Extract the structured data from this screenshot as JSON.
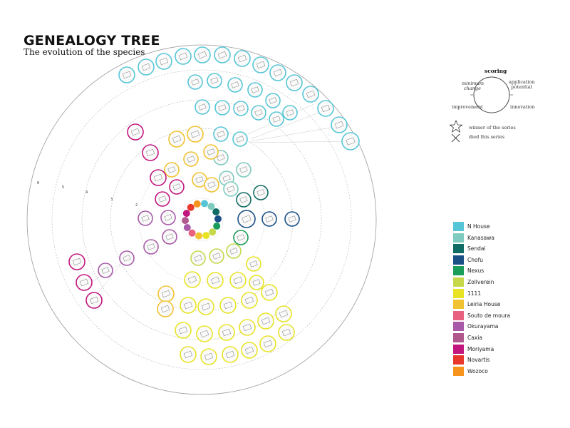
{
  "header": {
    "title": "GENEALOGY TREE",
    "subtitle": "The evolution of the species"
  },
  "scoring": {
    "title": "scoring",
    "minimum_change": "minimum change",
    "application_potential": "application potential",
    "improvement": "improvement",
    "innovation": "innovation"
  },
  "markers": {
    "winner": "winner of the series",
    "died": "died this series"
  },
  "ring_labels": [
    "2",
    "3",
    "4",
    "5",
    "6"
  ],
  "legend": [
    {
      "label": "N House",
      "color": "#56c6d6"
    },
    {
      "label": "Kanasawa",
      "color": "#7fcbbf"
    },
    {
      "label": "Sendai",
      "color": "#0f6b63"
    },
    {
      "label": "Chofu",
      "color": "#1a4f86"
    },
    {
      "label": "Nexus",
      "color": "#1a9c5a"
    },
    {
      "label": "Zollverein",
      "color": "#c6d84a"
    },
    {
      "label": "1111",
      "color": "#e8e425"
    },
    {
      "label": "Leiria House",
      "color": "#f1c232"
    },
    {
      "label": "Souto de moura",
      "color": "#e8627f"
    },
    {
      "label": "Okurayama",
      "color": "#a85aa8"
    },
    {
      "label": "Caxia",
      "color": "#b0588c"
    },
    {
      "label": "Moriyama",
      "color": "#c2167f"
    },
    {
      "label": "Novartis",
      "color": "#e8372b"
    },
    {
      "label": "Wozoco",
      "color": "#f7941d"
    }
  ]
}
